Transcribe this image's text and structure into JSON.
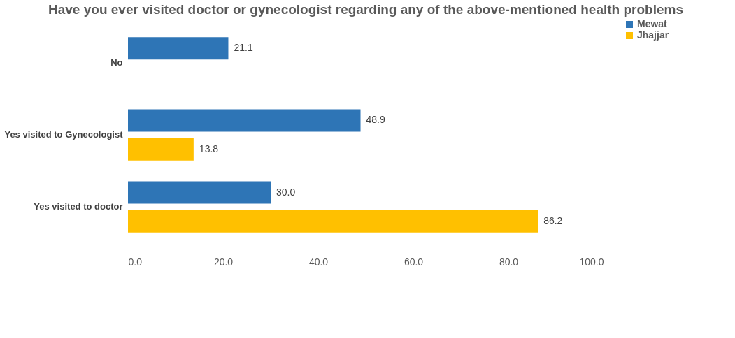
{
  "chart_data": {
    "type": "bar",
    "orientation": "horizontal",
    "title": "Have you ever visited doctor or gynecologist regarding any of the above-mentioned health problems",
    "categories": [
      "No",
      "Yes visited to Gynecologist",
      "Yes visited to doctor"
    ],
    "series": [
      {
        "name": "Mewat",
        "color": "#2e75b6",
        "values": [
          21.1,
          48.9,
          30.0
        ],
        "value_labels": [
          "21.1",
          "48.9",
          "30.0"
        ]
      },
      {
        "name": "Jhajjar",
        "color": "#ffc000",
        "values": [
          null,
          13.8,
          86.2
        ],
        "value_labels": [
          null,
          "13.8",
          "86.2"
        ]
      }
    ],
    "xlim": [
      0,
      100
    ],
    "xticks": [
      {
        "value": 0,
        "label": "0.0"
      },
      {
        "value": 20,
        "label": "20.0"
      },
      {
        "value": 40,
        "label": "40.0"
      },
      {
        "value": 60,
        "label": "60.0"
      },
      {
        "value": 80,
        "label": "80.0"
      },
      {
        "value": 100,
        "label": "100.0"
      }
    ],
    "grid": false,
    "legend": "right"
  }
}
